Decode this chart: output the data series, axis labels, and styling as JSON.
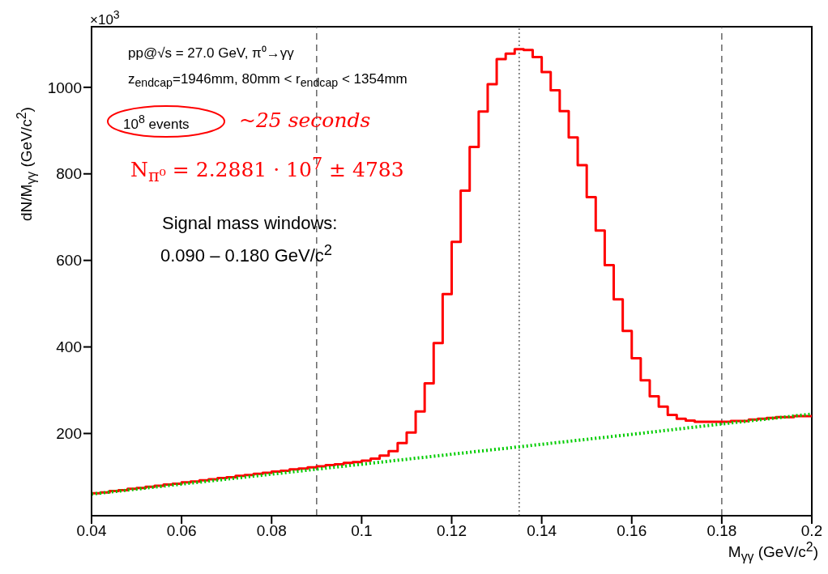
{
  "chart_data": {
    "type": "histogram",
    "xlabel": "M$_{γγ}$ (GeV/c$^{2}$)",
    "ylabel": "dN/M$_{γγ}$ (GeV/c$^{2}$)",
    "bins": [
      0.04,
      0.042,
      0.044,
      0.046,
      0.048,
      0.05,
      0.052,
      0.054,
      0.056,
      0.058,
      0.06,
      0.062,
      0.064,
      0.066,
      0.068,
      0.07,
      0.072,
      0.074,
      0.076,
      0.078,
      0.08,
      0.082,
      0.084,
      0.086,
      0.088,
      0.09,
      0.092,
      0.094,
      0.096,
      0.098,
      0.1,
      0.102,
      0.104,
      0.106,
      0.108,
      0.11,
      0.112,
      0.114,
      0.116,
      0.118,
      0.12,
      0.122,
      0.124,
      0.126,
      0.128,
      0.13,
      0.132,
      0.134,
      0.136,
      0.138,
      0.14,
      0.142,
      0.144,
      0.146,
      0.148,
      0.15,
      0.152,
      0.154,
      0.156,
      0.158,
      0.16,
      0.162,
      0.164,
      0.166,
      0.168,
      0.17,
      0.172,
      0.174,
      0.176,
      0.178,
      0.18,
      0.182,
      0.184,
      0.186,
      0.188,
      0.19,
      0.192,
      0.194,
      0.196,
      0.198,
      0.2
    ],
    "series": [
      {
        "type": "histogram",
        "color": "#ff0000",
        "values": [
          62,
          64,
          67,
          69,
          72,
          74,
          77,
          79,
          82,
          84,
          87,
          89,
          92,
          94,
          97,
          99,
          102,
          104,
          107,
          109,
          112,
          114,
          117,
          119,
          122,
          124,
          127,
          129,
          132,
          134,
          137,
          142,
          149,
          159,
          178,
          202,
          251,
          316,
          409,
          522,
          643,
          761,
          862,
          944,
          1007,
          1065,
          1078,
          1088,
          1086,
          1070,
          1035,
          993,
          945,
          884,
          820,
          746,
          669,
          589,
          510,
          437,
          374,
          323,
          286,
          262,
          243,
          234,
          230,
          227,
          227,
          227,
          227,
          229,
          229,
          232,
          234,
          236,
          238,
          238,
          240,
          240
        ]
      },
      {
        "type": "line",
        "color": "#00cc00",
        "line_style": "dotted",
        "x": [
          0.04,
          0.06,
          0.08,
          0.1,
          0.12,
          0.14,
          0.16,
          0.18,
          0.2
        ],
        "values": [
          60,
          83,
          106,
          129,
          152,
          175,
          198,
          222,
          245
        ]
      }
    ],
    "xlim": [
      0.04,
      0.2
    ],
    "xticks": [
      0.04,
      0.06,
      0.08,
      0.1,
      0.12,
      0.14,
      0.16,
      0.18,
      0.2
    ],
    "ylim": [
      10,
      1140
    ],
    "yticks": [
      200,
      400,
      600,
      800,
      1000
    ],
    "ref_lines": [
      {
        "axis": "x",
        "value": 0.09,
        "color": "#666666",
        "line_style": "dashed"
      },
      {
        "axis": "x",
        "value": 0.135,
        "color": "#666666",
        "line_style": "dotted"
      },
      {
        "axis": "x",
        "value": 0.18,
        "color": "#666666",
        "line_style": "dashed"
      }
    ],
    "annotations": [
      "×10$^{3}$",
      "pp@√s = 27.0 GeV, π⁰→γγ",
      "z$_{endcap}$=1946mm, 80mm < r$_{endcap}$ < 1354mm",
      "10$^{8}$ events",
      "~25 seconds",
      "N$_{π⁰}$ =  2.2881 · 10$^{7}$ ± 4783",
      "Signal mass windows:",
      "0.090 – 0.180 GeV/c$^{2}$"
    ]
  }
}
